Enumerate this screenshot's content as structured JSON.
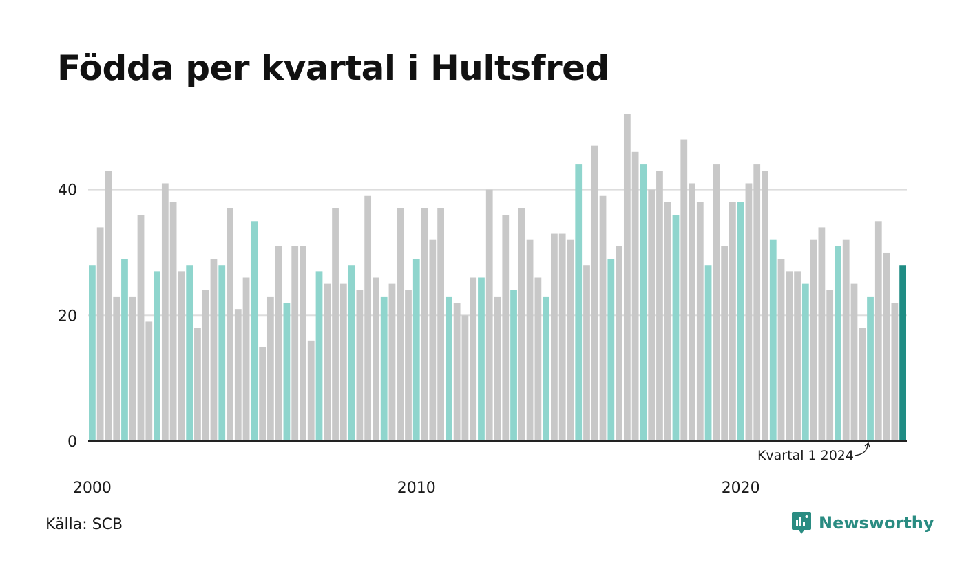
{
  "title": "Födda per kvartal i Hultsfred",
  "source": "Källa: SCB",
  "brand": "Newsworthy",
  "colors": {
    "highlight": "#8fd5cd",
    "other": "#c8c8c8",
    "latest": "#1f8c84",
    "grid": "#dddddd",
    "axis": "#222222",
    "brand": "#2a8c82"
  },
  "chart_data": {
    "type": "bar",
    "start_year": 2000,
    "start_quarter": 1,
    "highlight_quarter": 1,
    "values": [
      28,
      34,
      43,
      23,
      29,
      23,
      36,
      19,
      27,
      41,
      38,
      27,
      28,
      18,
      24,
      29,
      28,
      37,
      21,
      26,
      35,
      15,
      23,
      31,
      22,
      31,
      31,
      16,
      27,
      25,
      37,
      25,
      28,
      24,
      39,
      26,
      23,
      25,
      37,
      24,
      29,
      37,
      32,
      37,
      23,
      22,
      20,
      26,
      26,
      40,
      23,
      36,
      24,
      37,
      32,
      26,
      23,
      33,
      33,
      32,
      44,
      28,
      47,
      39,
      29,
      31,
      52,
      46,
      44,
      40,
      43,
      38,
      36,
      48,
      41,
      38,
      28,
      44,
      31,
      38,
      38,
      41,
      44,
      43,
      32,
      29,
      27,
      27,
      25,
      32,
      34,
      24,
      31,
      32,
      25,
      18,
      23,
      35,
      30,
      22,
      28
    ],
    "ylim": [
      0,
      52
    ],
    "yticks": [
      0,
      20,
      40
    ],
    "xticks": [
      "2000",
      "2010",
      "2020"
    ],
    "grid": true,
    "annotation": "Kvartal 1 2024"
  }
}
